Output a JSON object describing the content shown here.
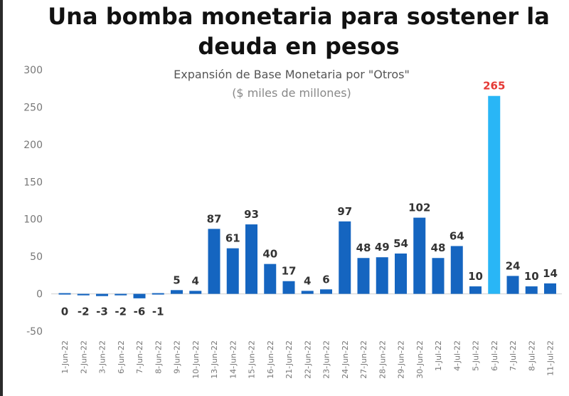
{
  "headline": "Una bomba monetaria para sostener la deuda en pesos",
  "chart_data": {
    "type": "bar",
    "title": "Expansión de Base Monetaria por \"Otros\"",
    "subtitle": "($ miles de millones)",
    "xlabel": "",
    "ylabel": "",
    "ylim": [
      -50,
      300
    ],
    "yticks": [
      -50,
      0,
      50,
      100,
      150,
      200,
      250,
      300
    ],
    "grid": false,
    "categories": [
      "1-Jun-22",
      "2-Jun-22",
      "3-Jun-22",
      "6-Jun-22",
      "7-Jun-22",
      "8-Jun-22",
      "9-Jun-22",
      "10-Jun-22",
      "13-Jun-22",
      "14-Jun-22",
      "15-Jun-22",
      "16-Jun-22",
      "21-Jun-22",
      "22-Jun-22",
      "23-Jun-22",
      "24-Jun-22",
      "27-Jun-22",
      "28-Jun-22",
      "29-Jun-22",
      "30-Jun-22",
      "1-Jul-22",
      "4-Jul-22",
      "5-Jul-22",
      "6-Jul-22",
      "7-Jul-22",
      "8-Jul-22",
      "11-Jul-22"
    ],
    "values": [
      0,
      -2,
      -3,
      -2,
      -6,
      -1,
      5,
      4,
      87,
      61,
      93,
      40,
      17,
      4,
      6,
      97,
      48,
      49,
      54,
      102,
      48,
      64,
      10,
      265,
      24,
      10,
      14
    ],
    "highlight_index": 23,
    "colors": {
      "bar": "#1565c0",
      "highlight_bar": "#29b6f6",
      "highlight_label": "#e53935",
      "label": "#333333",
      "axis_text": "#777777",
      "title": "#555555",
      "subtitle": "#888888"
    }
  }
}
